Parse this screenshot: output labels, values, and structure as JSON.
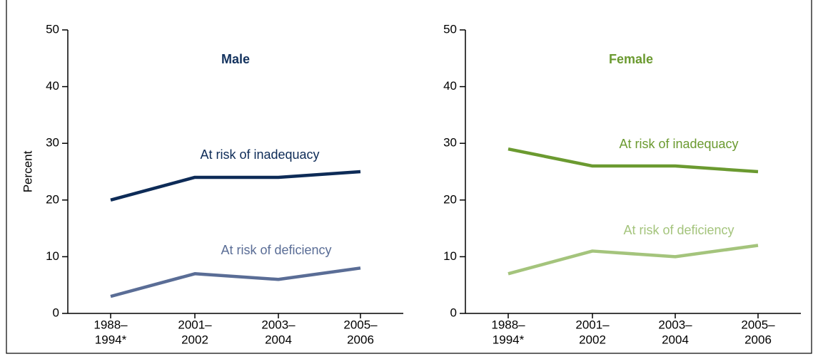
{
  "chart_data": [
    {
      "type": "line",
      "title": "Male",
      "title_color": "#13325e",
      "ylabel": "Percent",
      "categories": [
        [
          "1988–",
          "1994*"
        ],
        [
          "2001–",
          "2002"
        ],
        [
          "2003–",
          "2004"
        ],
        [
          "2005–",
          "2006"
        ]
      ],
      "series": [
        {
          "name": "At risk of inadequacy",
          "color": "#0d2b57",
          "values": [
            20,
            24,
            24,
            25
          ]
        },
        {
          "name": "At risk of deficiency",
          "color": "#5a6d96",
          "values": [
            3,
            7,
            6,
            8
          ]
        }
      ],
      "ylim": [
        0,
        50
      ],
      "yticks": [
        0,
        10,
        20,
        30,
        40,
        50
      ]
    },
    {
      "type": "line",
      "title": "Female",
      "title_color": "#6b9a30",
      "categories": [
        [
          "1988–",
          "1994*"
        ],
        [
          "2001–",
          "2002"
        ],
        [
          "2003–",
          "2004"
        ],
        [
          "2005–",
          "2006"
        ]
      ],
      "series": [
        {
          "name": "At risk of inadequacy",
          "color": "#6b9a30",
          "values": [
            29,
            26,
            26,
            25
          ]
        },
        {
          "name": "At risk of deficiency",
          "color": "#a4c47c",
          "values": [
            7,
            11,
            10,
            12
          ]
        }
      ],
      "ylim": [
        0,
        50
      ],
      "yticks": [
        0,
        10,
        20,
        30,
        40,
        50
      ]
    }
  ]
}
